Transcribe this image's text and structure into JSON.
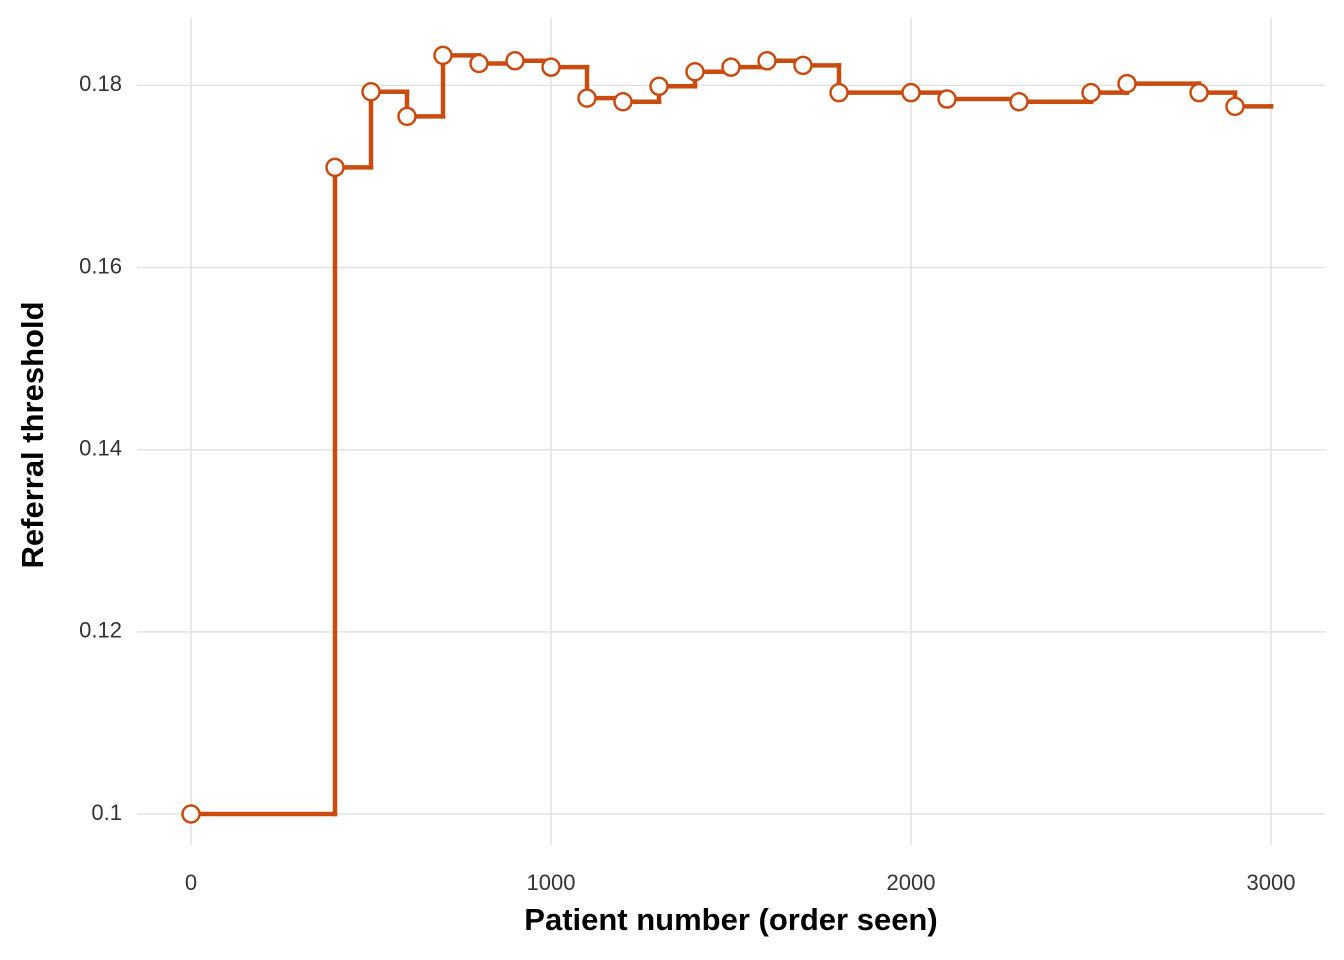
{
  "chart_data": {
    "type": "step",
    "x_label": "Patient number (order seen)",
    "y_label": "Referral threshold",
    "xlim": [
      -150,
      3150
    ],
    "xticks": [
      0,
      1000,
      2000,
      3000
    ],
    "ylim": [
      0.0966,
      0.1874
    ],
    "yticks": [
      0.1,
      0.12,
      0.14,
      0.16,
      0.18
    ],
    "grid": true,
    "series": [
      {
        "kind": "line",
        "color": "#c84b0f",
        "x": [
          0,
          400,
          500,
          600,
          700,
          800,
          900,
          1000,
          1100,
          1200,
          1300,
          1400,
          1500,
          1600,
          1700,
          1800,
          2000,
          2100,
          2300,
          2500,
          2600,
          2800,
          2900,
          3000
        ],
        "values": [
          0.1,
          0.171,
          0.1793,
          0.1766,
          0.1833,
          0.1824,
          0.1827,
          0.182,
          0.1786,
          0.1782,
          0.1799,
          0.1815,
          0.182,
          0.1827,
          0.1822,
          0.1792,
          0.1792,
          0.1785,
          0.1782,
          0.1792,
          0.1802,
          0.1792,
          0.1777,
          0.1777
        ]
      },
      {
        "kind": "points",
        "color": "#c84b0f",
        "x": [
          0,
          400,
          500,
          600,
          700,
          800,
          900,
          1000,
          1100,
          1200,
          1300,
          1400,
          1500,
          1600,
          1700,
          1800,
          2000,
          2100,
          2300,
          2500,
          2600,
          2800,
          2900
        ],
        "values": [
          0.1,
          0.171,
          0.1793,
          0.1766,
          0.1833,
          0.1824,
          0.1827,
          0.182,
          0.1786,
          0.1782,
          0.1799,
          0.1815,
          0.182,
          0.1827,
          0.1822,
          0.1792,
          0.1792,
          0.1785,
          0.1782,
          0.1792,
          0.1802,
          0.1792,
          0.1777
        ]
      }
    ]
  }
}
